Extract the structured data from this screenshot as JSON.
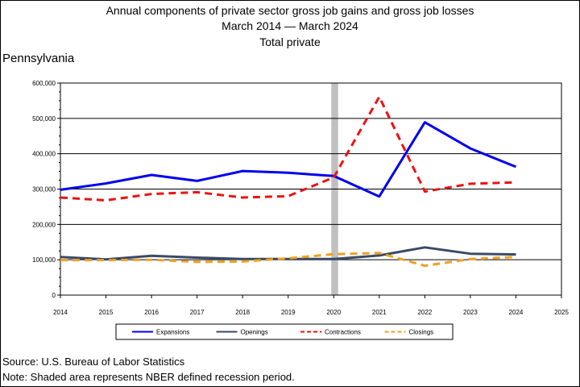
{
  "title_lines": [
    "Annual components of private sector gross job gains and gross job losses",
    "March 2014 — March 2024",
    "Total private"
  ],
  "region": "Pennsylvania",
  "footer": {
    "source": "Source: U.S. Bureau of Labor Statistics",
    "note": "Note: Shaded area represents NBER defined recession period."
  },
  "colors": {
    "expansions": "#0000ee",
    "openings": "#3a4a66",
    "contractions": "#ee1111",
    "closings": "#f0a020",
    "recession": "#c0c0c0"
  },
  "chart_data": {
    "type": "line",
    "x_ticks": [
      "2014",
      "2015",
      "2016",
      "2017",
      "2018",
      "2019",
      "2020",
      "2021",
      "2022",
      "2023",
      "2024",
      "2025"
    ],
    "y_ticks": [
      "0",
      "100,000",
      "200,000",
      "300,000",
      "400,000",
      "500,000",
      "600,000"
    ],
    "xlim": [
      2014,
      2025
    ],
    "ylim": [
      0,
      600000
    ],
    "grid": "horizontal",
    "legend_position": "bottom",
    "recession_shade": [
      2020.0,
      2020.15
    ],
    "series": [
      {
        "name": "Expansions",
        "style": "solid",
        "color_key": "expansions",
        "x": [
          2014,
          2015,
          2016,
          2017,
          2018,
          2019,
          2020,
          2021,
          2022,
          2023,
          2024
        ],
        "values": [
          298000,
          316000,
          340000,
          323000,
          351000,
          346000,
          337000,
          279000,
          489000,
          415000,
          363000
        ]
      },
      {
        "name": "Openings",
        "style": "solid",
        "color_key": "openings",
        "x": [
          2014,
          2015,
          2016,
          2017,
          2018,
          2019,
          2020,
          2021,
          2022,
          2023,
          2024
        ],
        "values": [
          108000,
          101000,
          111000,
          106000,
          102000,
          102000,
          102000,
          112000,
          135000,
          117000,
          115000
        ]
      },
      {
        "name": "Contractions",
        "style": "dashed",
        "color_key": "contractions",
        "x": [
          2014,
          2015,
          2016,
          2017,
          2018,
          2019,
          2020,
          2021,
          2022,
          2023,
          2024
        ],
        "values": [
          276000,
          268000,
          286000,
          291000,
          276000,
          280000,
          333000,
          561000,
          293000,
          315000,
          319000
        ]
      },
      {
        "name": "Closings",
        "style": "dashed",
        "color_key": "closings",
        "x": [
          2014,
          2015,
          2016,
          2017,
          2018,
          2019,
          2020,
          2021,
          2022,
          2023,
          2024
        ],
        "values": [
          99000,
          99000,
          100000,
          94000,
          95000,
          104000,
          116000,
          119000,
          83000,
          102000,
          108000
        ]
      }
    ]
  }
}
